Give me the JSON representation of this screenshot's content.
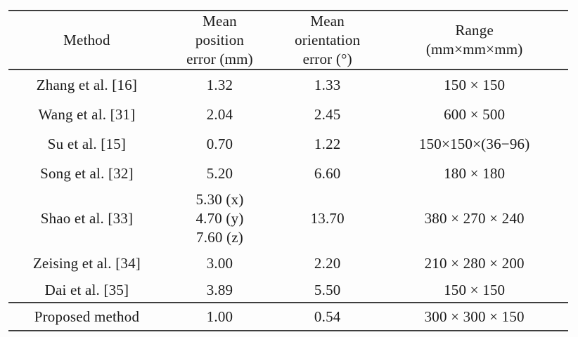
{
  "table": {
    "header": {
      "method": "Method",
      "position": "Mean\nposition\nerror (mm)",
      "orientation": "Mean\norientation\nerror (°)",
      "range": "Range\n(mm×mm×mm)"
    },
    "rows": [
      {
        "method": "Zhang et al. [16]",
        "position_error": "1.32",
        "orientation_error": "1.33",
        "range": "150 × 150"
      },
      {
        "method": "Wang et al. [31]",
        "position_error": "2.04",
        "orientation_error": "2.45",
        "range": "600 × 500"
      },
      {
        "method": "Su et al. [15]",
        "position_error": "0.70",
        "orientation_error": "1.22",
        "range": "150×150×(36−96)"
      },
      {
        "method": "Song et al. [32]",
        "position_error": "5.20",
        "orientation_error": "6.60",
        "range": "180 × 180"
      },
      {
        "method": "Shao et al. [33]",
        "position_error": "5.30 (x)\n4.70 (y)\n7.60 (z)",
        "orientation_error": "13.70",
        "range": "380 × 270 × 240"
      },
      {
        "method": "Zeising et al. [34]",
        "position_error": "3.00",
        "orientation_error": "2.20",
        "range": "210 × 280 × 200"
      },
      {
        "method": "Dai et al. [35]",
        "position_error": "3.89",
        "orientation_error": "5.50",
        "range": "150 × 150"
      }
    ],
    "proposed_row": {
      "method": "Proposed method",
      "position_error": "1.00",
      "orientation_error": "0.54",
      "range": "300 × 300 × 150"
    },
    "colors": {
      "text": "#1b1b1b",
      "rule": "#3e3e3e",
      "background": "#fdfdfd"
    }
  }
}
